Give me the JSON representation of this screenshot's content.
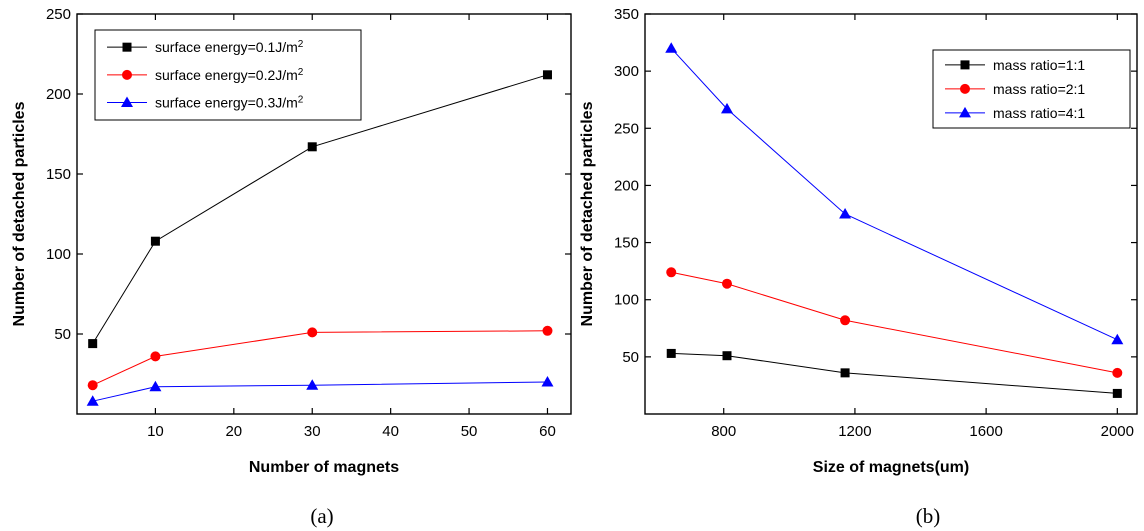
{
  "chart_data": [
    {
      "type": "line",
      "panel_label": "(a)",
      "xlabel": "Number of magnets",
      "ylabel": "Number of detached particles",
      "xlim": [
        0,
        63
      ],
      "ylim": [
        0,
        250
      ],
      "xticks": [
        10,
        20,
        30,
        40,
        50,
        60
      ],
      "yticks": [
        50,
        100,
        150,
        200,
        250
      ],
      "grid": false,
      "legend_position": "top-left",
      "x": [
        2,
        10,
        30,
        60
      ],
      "series": [
        {
          "name": "surface energy=0.1J/m",
          "sup": "2",
          "color": "#000000",
          "marker": "square",
          "values": [
            44,
            108,
            167,
            212
          ]
        },
        {
          "name": "surface energy=0.2J/m",
          "sup": "2",
          "color": "#ff0000",
          "marker": "circle",
          "values": [
            18,
            36,
            51,
            52
          ]
        },
        {
          "name": "surface energy=0.3J/m",
          "sup": "2",
          "color": "#0000ff",
          "marker": "triangle",
          "values": [
            8,
            17,
            18,
            20
          ]
        }
      ]
    },
    {
      "type": "line",
      "panel_label": "(b)",
      "xlabel": "Size of magnets(um)",
      "ylabel": "Number of detached particles",
      "xlim": [
        560,
        2060
      ],
      "ylim": [
        0,
        350
      ],
      "xticks": [
        800,
        1200,
        1600,
        2000
      ],
      "yticks": [
        50,
        100,
        150,
        200,
        250,
        300,
        350
      ],
      "grid": false,
      "legend_position": "top-right",
      "x": [
        640,
        810,
        1170,
        2000
      ],
      "series": [
        {
          "name": "mass ratio=1:1",
          "sup": "",
          "color": "#000000",
          "marker": "square",
          "values": [
            53,
            51,
            36,
            18
          ]
        },
        {
          "name": "mass ratio=2:1",
          "sup": "",
          "color": "#ff0000",
          "marker": "circle",
          "values": [
            124,
            114,
            82,
            36
          ]
        },
        {
          "name": "mass ratio=4:1",
          "sup": "",
          "color": "#0000ff",
          "marker": "triangle",
          "values": [
            320,
            267,
            175,
            65
          ]
        }
      ]
    }
  ]
}
